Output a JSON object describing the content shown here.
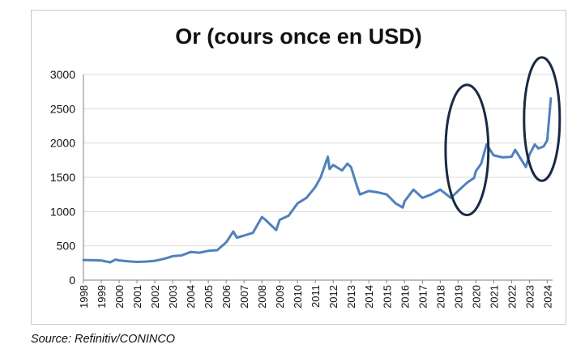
{
  "source": "Source: Refinitiv/CONINCO",
  "colors": {
    "line": "#4f81bd",
    "highlight": "#1a2a44",
    "grid": "#d9d9d9",
    "axis": "#808080"
  },
  "chart_data": {
    "type": "line",
    "title": "Or (cours once en USD)",
    "xlabel": "",
    "ylabel": "",
    "ylim": [
      0,
      3000
    ],
    "yticks": [
      "0",
      "500",
      "1000",
      "1500",
      "2000",
      "2500",
      "3000"
    ],
    "xticks": [
      "1998",
      "1999",
      "2000",
      "2001",
      "2002",
      "2003",
      "2004",
      "2005",
      "2006",
      "2007",
      "2008",
      "2009",
      "2010",
      "2011",
      "2012",
      "2013",
      "2014",
      "2015",
      "2016",
      "2017",
      "2018",
      "2019",
      "2020",
      "2021",
      "2022",
      "2023",
      "2024"
    ],
    "xlim": [
      1998,
      2024.3
    ],
    "grid": "horizontal",
    "legend": "none",
    "series": [
      {
        "x": [
          1998.0,
          1998.5,
          1999.0,
          1999.5,
          1999.8,
          2000.0,
          2000.5,
          2001.0,
          2001.5,
          2002.0,
          2002.5,
          2003.0,
          2003.5,
          2004.0,
          2004.5,
          2005.0,
          2005.5,
          2006.0,
          2006.4,
          2006.6,
          2007.0,
          2007.5,
          2008.0,
          2008.2,
          2008.8,
          2009.0,
          2009.5,
          2010.0,
          2010.5,
          2011.0,
          2011.3,
          2011.7,
          2011.8,
          2012.0,
          2012.5,
          2012.8,
          2013.0,
          2013.3,
          2013.5,
          2014.0,
          2014.5,
          2015.0,
          2015.5,
          2015.9,
          2016.0,
          2016.5,
          2017.0,
          2017.5,
          2018.0,
          2018.6,
          2019.0,
          2019.5,
          2019.9,
          2020.0,
          2020.3,
          2020.6,
          2021.0,
          2021.5,
          2022.0,
          2022.2,
          2022.8,
          2023.0,
          2023.3,
          2023.5,
          2023.8,
          2024.0,
          2024.2
        ],
        "y": [
          294,
          290,
          287,
          260,
          300,
          288,
          275,
          266,
          270,
          282,
          310,
          350,
          360,
          410,
          400,
          427,
          437,
          550,
          710,
          620,
          650,
          690,
          920,
          880,
          730,
          880,
          940,
          1120,
          1200,
          1360,
          1500,
          1800,
          1620,
          1680,
          1600,
          1700,
          1650,
          1400,
          1250,
          1300,
          1280,
          1250,
          1120,
          1060,
          1150,
          1320,
          1200,
          1250,
          1320,
          1200,
          1300,
          1420,
          1490,
          1590,
          1700,
          1980,
          1820,
          1790,
          1800,
          1900,
          1650,
          1830,
          1980,
          1920,
          1950,
          2040,
          2650
        ]
      }
    ],
    "annotations": [
      {
        "type": "ellipse",
        "center_x": 2019.5,
        "center_y": 1900,
        "rx_years": 1.2,
        "ry_value": 950
      },
      {
        "type": "ellipse",
        "center_x": 2023.7,
        "center_y": 2350,
        "rx_years": 1.0,
        "ry_value": 900
      }
    ]
  }
}
